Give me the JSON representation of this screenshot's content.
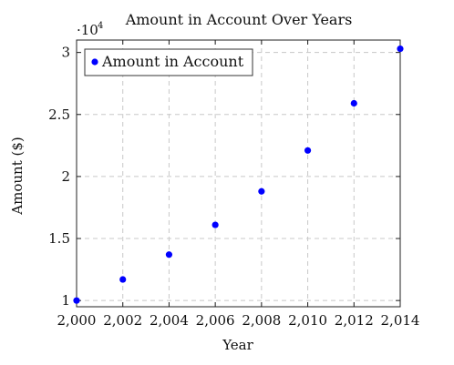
{
  "chart_data": {
    "type": "scatter",
    "title": "Amount in Account Over Years",
    "xlabel": "Year",
    "ylabel": "Amount ($)",
    "y_multiplier_label": "·10",
    "y_multiplier_exp": "4",
    "xlim": [
      2000,
      2014
    ],
    "ylim": [
      9500,
      31000
    ],
    "x_ticks": [
      2000,
      2002,
      2004,
      2006,
      2008,
      2010,
      2012,
      2014
    ],
    "x_tick_labels": [
      "2,000",
      "2,002",
      "2,004",
      "2,006",
      "2,008",
      "2,010",
      "2,012",
      "2,014"
    ],
    "y_ticks": [
      10000,
      15000,
      20000,
      25000,
      30000
    ],
    "y_tick_labels": [
      "1",
      "1.5",
      "2",
      "2.5",
      "3"
    ],
    "grid": true,
    "legend_position": "top-left",
    "series": [
      {
        "name": "Amount in Account",
        "color": "#0000ff",
        "x": [
          2000,
          2002,
          2004,
          2006,
          2008,
          2010,
          2012,
          2014
        ],
        "y": [
          10000,
          11700,
          13700,
          16100,
          18800,
          22100,
          25900,
          30300
        ]
      }
    ]
  }
}
